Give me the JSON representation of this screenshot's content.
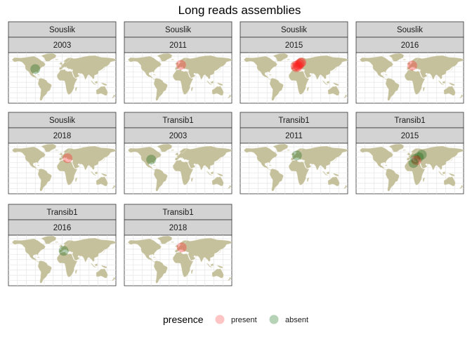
{
  "chart_data": {
    "type": "scatter",
    "title": "Long reads assemblies",
    "facet_rows": [
      "Souslik",
      "Transib1"
    ],
    "facet_cols": [
      "2003",
      "2011",
      "2015",
      "2016",
      "2018"
    ],
    "panels": [
      {
        "element": "Souslik",
        "year": "2003",
        "points": [
          {
            "lon": -90,
            "lat": 38,
            "presence": "absent"
          }
        ]
      },
      {
        "element": "Souslik",
        "year": "2011",
        "points": [
          {
            "lon": 10,
            "lat": 50,
            "presence": "present"
          }
        ]
      },
      {
        "element": "Souslik",
        "year": "2015",
        "points": [
          {
            "lon": 5,
            "lat": 47,
            "presence": "present"
          },
          {
            "lon": 12,
            "lat": 49,
            "presence": "present"
          },
          {
            "lon": 18,
            "lat": 52,
            "presence": "present"
          },
          {
            "lon": 22,
            "lat": 55,
            "presence": "present"
          },
          {
            "lon": 25,
            "lat": 57,
            "presence": "present"
          },
          {
            "lon": 8,
            "lat": 43,
            "presence": "present"
          },
          {
            "lon": 15,
            "lat": 46,
            "presence": "present"
          }
        ]
      },
      {
        "element": "Souslik",
        "year": "2016",
        "points": [
          {
            "lon": 8,
            "lat": 48,
            "presence": "present"
          }
        ]
      },
      {
        "element": "Souslik",
        "year": "2018",
        "points": [
          {
            "lon": 18,
            "lat": 42,
            "presence": "present"
          }
        ]
      },
      {
        "element": "Transib1",
        "year": "2003",
        "points": [
          {
            "lon": -90,
            "lat": 38,
            "presence": "absent"
          }
        ]
      },
      {
        "element": "Transib1",
        "year": "2011",
        "points": [
          {
            "lon": 10,
            "lat": 50,
            "presence": "absent"
          }
        ]
      },
      {
        "element": "Transib1",
        "year": "2015",
        "points": [
          {
            "lon": 18,
            "lat": 40,
            "presence": "absent"
          },
          {
            "lon": 30,
            "lat": 45,
            "presence": "absent"
          },
          {
            "lon": 40,
            "lat": 52,
            "presence": "absent"
          },
          {
            "lon": 22,
            "lat": 36,
            "presence": "present"
          },
          {
            "lon": 12,
            "lat": 28,
            "presence": "absent"
          }
        ]
      },
      {
        "element": "Transib1",
        "year": "2016",
        "points": [
          {
            "lon": 5,
            "lat": 40,
            "presence": "absent"
          }
        ]
      },
      {
        "element": "Transib1",
        "year": "2018",
        "points": [
          {
            "lon": 12,
            "lat": 50,
            "presence": "present"
          }
        ]
      }
    ],
    "legend": {
      "title": "presence",
      "position": "bottom",
      "entries": [
        {
          "label": "present",
          "color": "#ff5a5a"
        },
        {
          "label": "absent",
          "color": "#2e7d32"
        }
      ]
    },
    "grid": true,
    "xlim": [
      -180,
      180
    ],
    "ylim": [
      -60,
      85
    ]
  },
  "colors": {
    "present": "#ff1a1a",
    "absent": "#0a5f0a",
    "land": "#c6c19d",
    "strip": "#d3d3d3",
    "grid": "#e6e6e6"
  }
}
